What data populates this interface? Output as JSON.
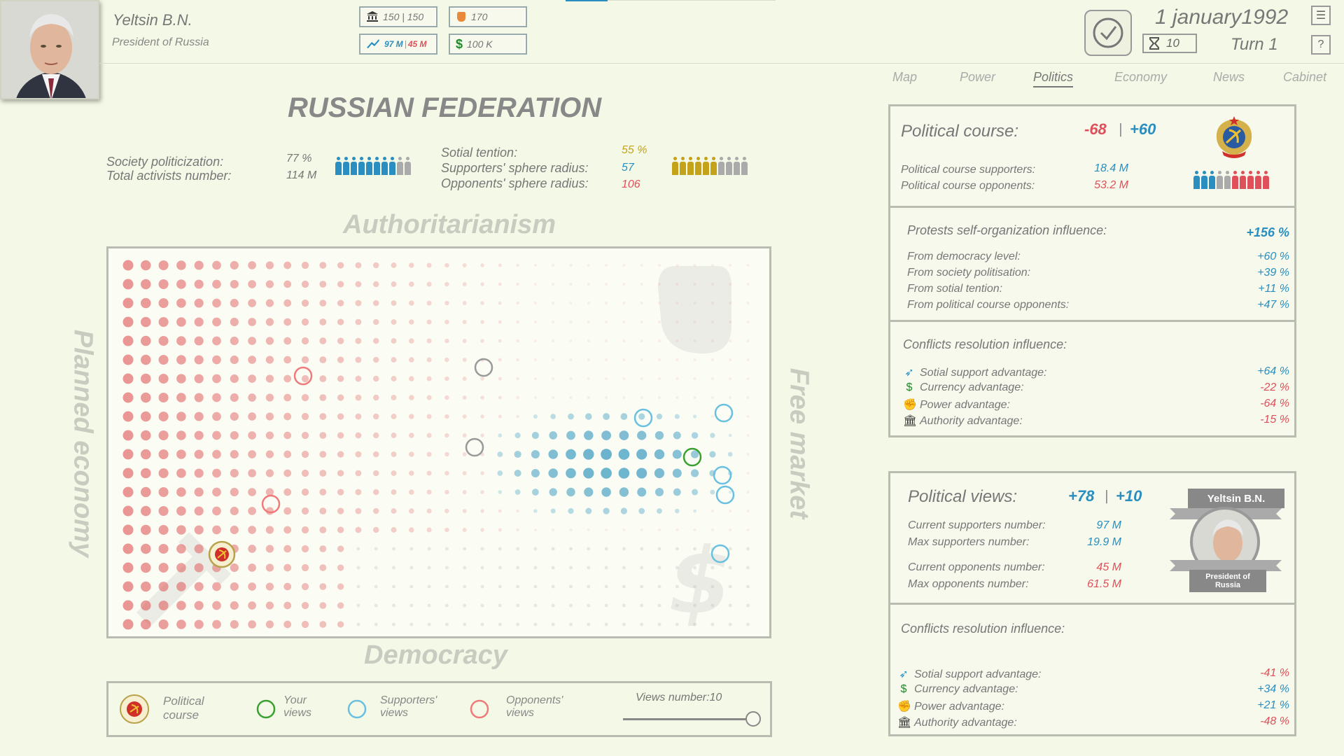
{
  "leader": {
    "name": "Yeltsin B.N.",
    "role": "President of Russia"
  },
  "resources": {
    "authority": "150 | 150",
    "power": "170",
    "support_supporters": "97 M",
    "support_opponents": "45 M",
    "currency": "100 K"
  },
  "date": "1 january1992",
  "timer": "10",
  "turn": "Turn 1",
  "nav": [
    "Map",
    "Power",
    "Politics",
    "Economy",
    "News",
    "Cabinet"
  ],
  "country": "RUSSIAN FEDERATION",
  "society": {
    "politicization_label": "Society politicization:",
    "politicization": "77 %",
    "activists_label": "Total activists number:",
    "activists": "114 M",
    "tension_label": "Sotial tention:",
    "tension": "55 %",
    "supporters_radius_label": "Supporters' sphere radius:",
    "supporters_radius": "57",
    "opponents_radius_label": "Opponents' sphere radius:",
    "opponents_radius": "106"
  },
  "axes": {
    "top": "Authoritarianism",
    "bottom": "Democracy",
    "left": "Planned economy",
    "right": "Free market"
  },
  "legend": {
    "course": "Political course",
    "yours": "Your views",
    "supporters": "Supporters' views",
    "opponents": "Opponents' views",
    "views_number": "Views number:10",
    "views_value": 10
  },
  "political_course": {
    "title": "Political course:",
    "value_neg": "-68",
    "separator": "|",
    "value_pos": "+60",
    "supporters_label": "Political course supporters:",
    "supporters": "18.4 M",
    "opponents_label": "Political course opponents:",
    "opponents": "53.2 M"
  },
  "protests": {
    "title": "Protests self-organization influence:",
    "total": "+156 %",
    "rows": [
      {
        "label": "From democracy level:",
        "value": "+60 %"
      },
      {
        "label": "From society politisation:",
        "value": "+39 %"
      },
      {
        "label": "From sotial tention:",
        "value": "+11 %"
      },
      {
        "label": "From political course opponents:",
        "value": "+47 %"
      }
    ]
  },
  "conflicts1": {
    "title": "Conflicts resolution influence:",
    "rows": [
      {
        "label": "Sotial support advantage:",
        "value": "+64 %",
        "color": "blue"
      },
      {
        "label": "Currency advantage:",
        "value": "-22 %",
        "color": "red"
      },
      {
        "label": "Power advantage:",
        "value": "-64 %",
        "color": "red"
      },
      {
        "label": "Authority advantage:",
        "value": "-15 %",
        "color": "red"
      }
    ]
  },
  "political_views": {
    "title": "Political views:",
    "value1": "+78",
    "separator": "|",
    "value2": "+10",
    "rows": [
      {
        "label": "Current supporters number:",
        "value": "97 M",
        "color": "blue"
      },
      {
        "label": "Max supporters number:",
        "value": "19.9 M",
        "color": "blue"
      },
      {
        "label": "Current opponents number:",
        "value": "45 M",
        "color": "red"
      },
      {
        "label": "Max opponents number:",
        "value": "61.5 M",
        "color": "red"
      }
    ],
    "badge_name": "Yeltsin B.N.",
    "badge_role": "President of Russia"
  },
  "conflicts2": {
    "title": "Conflicts resolution influence:",
    "rows": [
      {
        "label": "Sotial support advantage:",
        "value": "-41 %",
        "color": "red"
      },
      {
        "label": "Currency advantage:",
        "value": "+34 %",
        "color": "blue"
      },
      {
        "label": "Power advantage:",
        "value": "+21 %",
        "color": "blue"
      },
      {
        "label": "Authority advantage:",
        "value": "-48 %",
        "color": "red"
      }
    ]
  },
  "colors": {
    "blue": "#2a8fc0",
    "red": "#e0505a",
    "gold": "#c4a31a",
    "green": "#3aa030"
  }
}
